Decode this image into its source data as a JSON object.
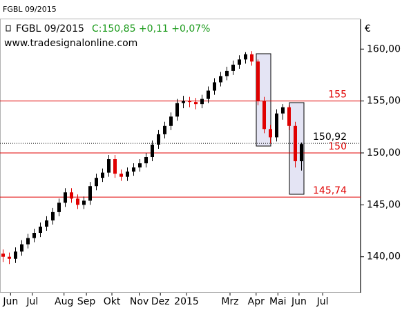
{
  "chart_data": {
    "type": "candlestick",
    "header": "FGBL 09/2015",
    "symbol": "FGBL 09/2015",
    "quote": "C:150,85 +0,11 +0,07%",
    "website": "www.tradesignalonline.com",
    "currency": "€",
    "up_color": "#000000",
    "down_color": "#e00000",
    "open": [
      140.3,
      140.0,
      139.8,
      140.5,
      141.2,
      141.8,
      142.3,
      142.9,
      143.5,
      144.3,
      145.2,
      146.2,
      145.6,
      145.0,
      145.4,
      146.8,
      147.6,
      148.1,
      149.4,
      148.0,
      147.7,
      148.2,
      148.6,
      149.0,
      149.6,
      150.8,
      151.8,
      152.6,
      153.5,
      154.8,
      155.0,
      154.9,
      154.7,
      155.2,
      156.0,
      156.8,
      157.4,
      157.9,
      158.5,
      159.0,
      159.5,
      158.8,
      155.0,
      152.3,
      151.5,
      153.8,
      154.4,
      152.6,
      149.2
    ],
    "high": [
      140.7,
      140.4,
      140.9,
      141.6,
      142.2,
      142.7,
      143.3,
      143.9,
      144.7,
      145.6,
      146.6,
      146.6,
      146.0,
      145.8,
      147.2,
      148.0,
      148.5,
      149.8,
      149.8,
      148.4,
      148.6,
      149.0,
      149.4,
      150.0,
      151.2,
      152.2,
      153.0,
      153.9,
      155.2,
      155.5,
      155.4,
      155.3,
      155.6,
      156.4,
      157.2,
      157.8,
      158.3,
      158.9,
      159.4,
      159.7,
      159.8,
      159.0,
      155.4,
      152.7,
      154.2,
      154.7,
      154.6,
      153.0,
      151.0
    ],
    "low": [
      139.5,
      139.3,
      139.4,
      140.1,
      140.8,
      141.4,
      141.9,
      142.5,
      143.1,
      143.9,
      144.8,
      145.2,
      144.6,
      144.6,
      145.0,
      146.4,
      147.2,
      147.7,
      147.6,
      147.3,
      147.3,
      147.8,
      148.2,
      148.6,
      149.2,
      150.4,
      151.4,
      152.2,
      153.1,
      154.3,
      154.4,
      154.2,
      154.3,
      154.8,
      155.6,
      156.4,
      157.0,
      157.5,
      158.1,
      158.6,
      158.4,
      154.6,
      151.9,
      150.9,
      151.1,
      153.2,
      152.2,
      148.6,
      148.3
    ],
    "close": [
      140.0,
      139.8,
      140.5,
      141.2,
      141.8,
      142.3,
      142.9,
      143.5,
      144.3,
      145.2,
      146.2,
      145.6,
      145.0,
      145.4,
      146.8,
      147.6,
      148.1,
      149.4,
      148.0,
      147.7,
      148.2,
      148.6,
      149.0,
      149.6,
      150.8,
      151.8,
      152.6,
      153.5,
      154.8,
      155.0,
      154.9,
      154.7,
      155.2,
      156.0,
      156.8,
      157.4,
      157.9,
      158.5,
      159.0,
      159.5,
      158.8,
      155.0,
      152.3,
      151.5,
      153.8,
      154.4,
      152.6,
      149.2,
      150.85
    ],
    "xlim": [
      0,
      58
    ],
    "xticks": [
      {
        "value": 1.7,
        "label": "Jun"
      },
      {
        "value": 5.2,
        "label": "Jul"
      },
      {
        "value": 10.3,
        "label": "Aug"
      },
      {
        "value": 13.9,
        "label": "Sep"
      },
      {
        "value": 18,
        "label": "Okt"
      },
      {
        "value": 22.4,
        "label": "Nov"
      },
      {
        "value": 25.8,
        "label": "Dez"
      },
      {
        "value": 30,
        "label": "2015"
      },
      {
        "value": 37,
        "label": "Mrz"
      },
      {
        "value": 41.2,
        "label": "Apr"
      },
      {
        "value": 44.7,
        "label": "Mai"
      },
      {
        "value": 48.1,
        "label": "Jun"
      },
      {
        "value": 51.9,
        "label": "Jul"
      }
    ],
    "ylim": [
      136.53,
      162.87
    ],
    "yticks": [
      {
        "value": 140,
        "label": "140,00"
      },
      {
        "value": 145,
        "label": "145,00"
      },
      {
        "value": 150,
        "label": "150,00"
      },
      {
        "value": 155,
        "label": "155,00"
      },
      {
        "value": 160,
        "label": "160,00"
      }
    ],
    "levels": [
      {
        "value": 155,
        "label": "155"
      },
      {
        "value": 150,
        "label": "150"
      },
      {
        "value": 145.74,
        "label": "145,74"
      }
    ],
    "last": {
      "value": 150.92,
      "label": "150,92"
    }
  }
}
